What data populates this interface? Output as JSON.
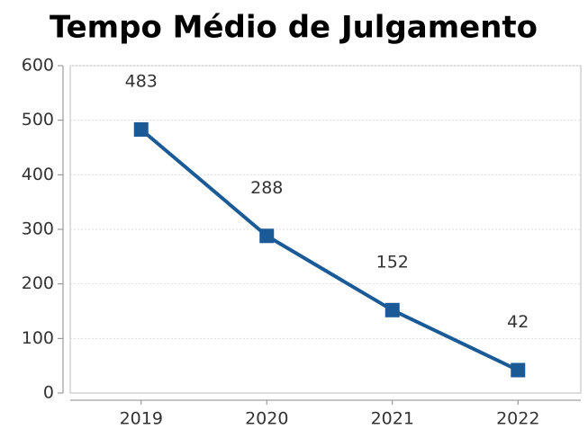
{
  "chart_data": {
    "type": "line",
    "title": "Tempo Médio de Julgamento",
    "categories": [
      "2019",
      "2020",
      "2021",
      "2022"
    ],
    "series": [
      {
        "name": "Tempo Médio de Julgamento",
        "color": "#1a5a96",
        "values": [
          483,
          288,
          152,
          42
        ]
      }
    ],
    "ylim": [
      0,
      600
    ],
    "yticks": [
      0,
      100,
      200,
      300,
      400,
      500,
      600
    ],
    "grid": true
  }
}
